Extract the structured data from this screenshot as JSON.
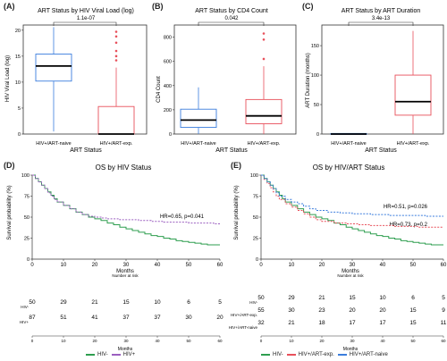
{
  "colors": {
    "naive": "#3b7ddd",
    "exp": "#e8505b",
    "hivneg": "#2e9e4f",
    "hivpos": "#9b5fc0",
    "gray": "#555555"
  },
  "panels": {
    "A": "(A)",
    "B": "(B)",
    "C": "(C)",
    "D": "(D)",
    "E": "(E)"
  },
  "chart_data": [
    {
      "id": "A",
      "type": "box",
      "title": "ART Status by HIV Viral Load (log)",
      "xlabel": "ART Status",
      "ylabel": "HIV Viral Load (log)",
      "ylim": [
        0,
        21
      ],
      "yticks": [
        "0",
        "5",
        "10",
        "15",
        "20"
      ],
      "ytick_values": [
        0,
        5,
        10,
        15,
        20
      ],
      "categories": [
        "HIV+/ART-naive",
        "HIV+/ART-exp."
      ],
      "pvalue": "1.1e-07",
      "boxes": [
        {
          "q1": 10.2,
          "median": 13.1,
          "q3": 15.4,
          "min": 0.5,
          "max": 20.6,
          "outliers": []
        },
        {
          "q1": 0,
          "median": 0,
          "q3": 5.3,
          "min": 0,
          "max": 12.8,
          "outliers": [
            14.2,
            15.0,
            16.0,
            17.6,
            18.8,
            19.7
          ]
        }
      ]
    },
    {
      "id": "B",
      "type": "box",
      "title": "ART Status by CD4 Count",
      "xlabel": "ART Status",
      "ylabel": "CD4 Count",
      "ylim": [
        0,
        900
      ],
      "yticks": [
        "0",
        "200",
        "400",
        "600",
        "800"
      ],
      "ytick_values": [
        0,
        200,
        400,
        600,
        800
      ],
      "categories": [
        "HIV+/ART-naive",
        "HIV+/ART-exp."
      ],
      "pvalue": "0.042",
      "boxes": [
        {
          "q1": 55,
          "median": 115,
          "q3": 205,
          "min": 0,
          "max": 385,
          "outliers": []
        },
        {
          "q1": 85,
          "median": 150,
          "q3": 285,
          "min": 0,
          "max": 560,
          "outliers": [
            620,
            780,
            830
          ]
        }
      ]
    },
    {
      "id": "C",
      "type": "box",
      "title": "ART Status by ART Duration",
      "xlabel": "ART Status",
      "ylabel": "ART Duration (months)",
      "ylim": [
        0,
        185
      ],
      "yticks": [
        "0",
        "50",
        "100",
        "150"
      ],
      "ytick_values": [
        0,
        50,
        100,
        150
      ],
      "categories": [
        "HIV+/ART-naive",
        "HIV+/ART-exp."
      ],
      "pvalue": "3.4e-13",
      "boxes": [
        {
          "q1": 0,
          "median": 0,
          "q3": 1,
          "min": 0,
          "max": 1,
          "outliers": []
        },
        {
          "q1": 32,
          "median": 55,
          "q3": 100,
          "min": 0,
          "max": 175,
          "outliers": []
        }
      ]
    },
    {
      "id": "D",
      "type": "line",
      "title": "OS by HIV Status",
      "xlabel": "Months",
      "ylabel": "Survival probability (%)",
      "xlim": [
        0,
        60
      ],
      "ylim": [
        0,
        100
      ],
      "xticks": [
        "0",
        "10",
        "20",
        "30",
        "40",
        "50",
        "60"
      ],
      "xtick_values": [
        0,
        10,
        20,
        30,
        40,
        50,
        60
      ],
      "yticks": [
        "0",
        "25",
        "50",
        "75",
        "100"
      ],
      "ytick_values": [
        0,
        25,
        50,
        75,
        100
      ],
      "annotations": [
        "HR=0.65, p=0.041"
      ],
      "series": [
        {
          "name": "HIV-",
          "dash": false,
          "x": [
            0,
            1,
            2,
            3,
            4,
            5,
            6,
            7,
            8,
            10,
            12,
            14,
            16,
            18,
            20,
            22,
            24,
            26,
            28,
            30,
            32,
            34,
            36,
            38,
            40,
            42,
            44,
            46,
            48,
            50,
            52,
            54,
            56,
            58,
            60
          ],
          "y": [
            100,
            96,
            92,
            88,
            84,
            80,
            76,
            72,
            68,
            64,
            60,
            56,
            53,
            50,
            48,
            46,
            43,
            41,
            38,
            36,
            34,
            32,
            30,
            28,
            27,
            25,
            24,
            22,
            21,
            20,
            19,
            18,
            17,
            17,
            17
          ]
        },
        {
          "name": "HIV+",
          "dash": true,
          "x": [
            0,
            1,
            2,
            3,
            4,
            5,
            6,
            7,
            8,
            10,
            12,
            14,
            16,
            18,
            20,
            22,
            24,
            26,
            28,
            30,
            34,
            38,
            42,
            46,
            50,
            54,
            58,
            60
          ],
          "y": [
            100,
            96,
            92,
            88,
            84,
            79,
            75,
            71,
            68,
            64,
            60,
            56,
            53,
            51,
            50,
            49,
            48,
            48,
            47,
            47,
            46,
            45,
            44,
            44,
            43,
            43,
            42,
            42
          ]
        }
      ],
      "risk_table": {
        "title": "Number at risk",
        "rows": [
          {
            "label": "HIV-",
            "values": [
              "50",
              "29",
              "21",
              "15",
              "10",
              "6",
              "5"
            ]
          },
          {
            "label": "HIV+",
            "values": [
              "87",
              "51",
              "41",
              "37",
              "37",
              "30",
              "20"
            ]
          }
        ],
        "xticks": [
          "0",
          "10",
          "20",
          "30",
          "40",
          "50",
          "60"
        ],
        "xlabel": "Months"
      },
      "legend": [
        "HIV-",
        "HIV+"
      ]
    },
    {
      "id": "E",
      "type": "line",
      "title": "OS by HIV/ART Status",
      "xlabel": "Months",
      "ylabel": "Survival probability (%)",
      "xlim": [
        0,
        60
      ],
      "ylim": [
        0,
        100
      ],
      "xticks": [
        "0",
        "10",
        "20",
        "30",
        "40",
        "50",
        "60"
      ],
      "xtick_values": [
        0,
        10,
        20,
        30,
        40,
        50,
        60
      ],
      "yticks": [
        "0",
        "25",
        "50",
        "75",
        "100"
      ],
      "ytick_values": [
        0,
        25,
        50,
        75,
        100
      ],
      "annotations": [
        "HR=0.51, p=0.026",
        "HR=0.73, p=0.2"
      ],
      "series": [
        {
          "name": "HIV-",
          "dash": false,
          "x": [
            0,
            1,
            2,
            3,
            4,
            5,
            6,
            7,
            8,
            10,
            12,
            14,
            16,
            18,
            20,
            22,
            24,
            26,
            28,
            30,
            32,
            34,
            36,
            38,
            40,
            42,
            44,
            46,
            48,
            50,
            52,
            54,
            56,
            58,
            60
          ],
          "y": [
            100,
            96,
            92,
            88,
            84,
            80,
            76,
            72,
            68,
            64,
            60,
            56,
            53,
            50,
            48,
            46,
            43,
            41,
            38,
            36,
            34,
            32,
            30,
            28,
            27,
            25,
            24,
            22,
            21,
            20,
            19,
            18,
            17,
            17,
            17
          ]
        },
        {
          "name": "HIV+/ART-exp.",
          "dash": true,
          "x": [
            0,
            1,
            2,
            3,
            4,
            5,
            6,
            8,
            10,
            12,
            14,
            16,
            18,
            20,
            24,
            28,
            32,
            36,
            40,
            44,
            48,
            52,
            56,
            60
          ],
          "y": [
            100,
            95,
            90,
            85,
            80,
            75,
            71,
            66,
            62,
            58,
            54,
            50,
            47,
            45,
            43,
            42,
            41,
            40,
            40,
            39,
            39,
            38,
            38,
            38
          ]
        },
        {
          "name": "HIV+/ART-naive",
          "dash": true,
          "x": [
            0,
            1,
            2,
            3,
            4,
            5,
            6,
            8,
            10,
            12,
            14,
            16,
            18,
            22,
            26,
            30,
            36,
            42,
            48,
            54,
            60
          ],
          "y": [
            100,
            96,
            92,
            88,
            84,
            79,
            75,
            71,
            68,
            66,
            63,
            60,
            58,
            56,
            55,
            54,
            53,
            52,
            52,
            51,
            51
          ]
        }
      ],
      "risk_table": {
        "title": "Number at risk",
        "rows": [
          {
            "label": "HIV-",
            "values": [
              "50",
              "29",
              "21",
              "15",
              "10",
              "6",
              "5"
            ]
          },
          {
            "label": "HIV+/ART-exp.",
            "values": [
              "55",
              "30",
              "23",
              "20",
              "20",
              "15",
              "9"
            ]
          },
          {
            "label": "HIV+/ART-naive",
            "values": [
              "32",
              "21",
              "18",
              "17",
              "17",
              "15",
              "11"
            ]
          }
        ],
        "xticks": [
          "0",
          "10",
          "20",
          "30",
          "40",
          "50",
          "60"
        ],
        "xlabel": "Months"
      },
      "legend": [
        "HIV-",
        "HIV+/ART-exp.",
        "HIV+/ART-naive"
      ]
    }
  ]
}
